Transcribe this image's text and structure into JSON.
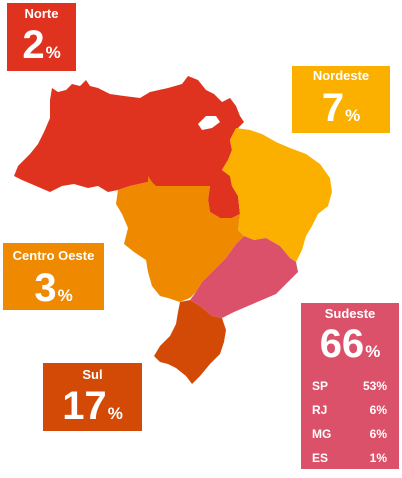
{
  "colors": {
    "norte": "#e0331f",
    "nordeste": "#fbb000",
    "centro_oeste": "#ee8900",
    "sudeste": "#db5169",
    "sul": "#d24a06",
    "label_text": "#ffffff",
    "background": "#ffffff"
  },
  "regions": {
    "norte": {
      "name": "Norte",
      "value": "2",
      "unit": "%"
    },
    "nordeste": {
      "name": "Nordeste",
      "value": "7",
      "unit": "%"
    },
    "centro_oeste": {
      "name": "Centro Oeste",
      "value": "3",
      "unit": "%"
    },
    "sul": {
      "name": "Sul",
      "value": "17",
      "unit": "%"
    },
    "sudeste": {
      "name": "Sudeste",
      "value": "66",
      "unit": "%",
      "states": [
        {
          "code": "SP",
          "value": "53%"
        },
        {
          "code": "RJ",
          "value": "6%"
        },
        {
          "code": "MG",
          "value": "6%"
        },
        {
          "code": "ES",
          "value": "1%"
        }
      ]
    }
  }
}
